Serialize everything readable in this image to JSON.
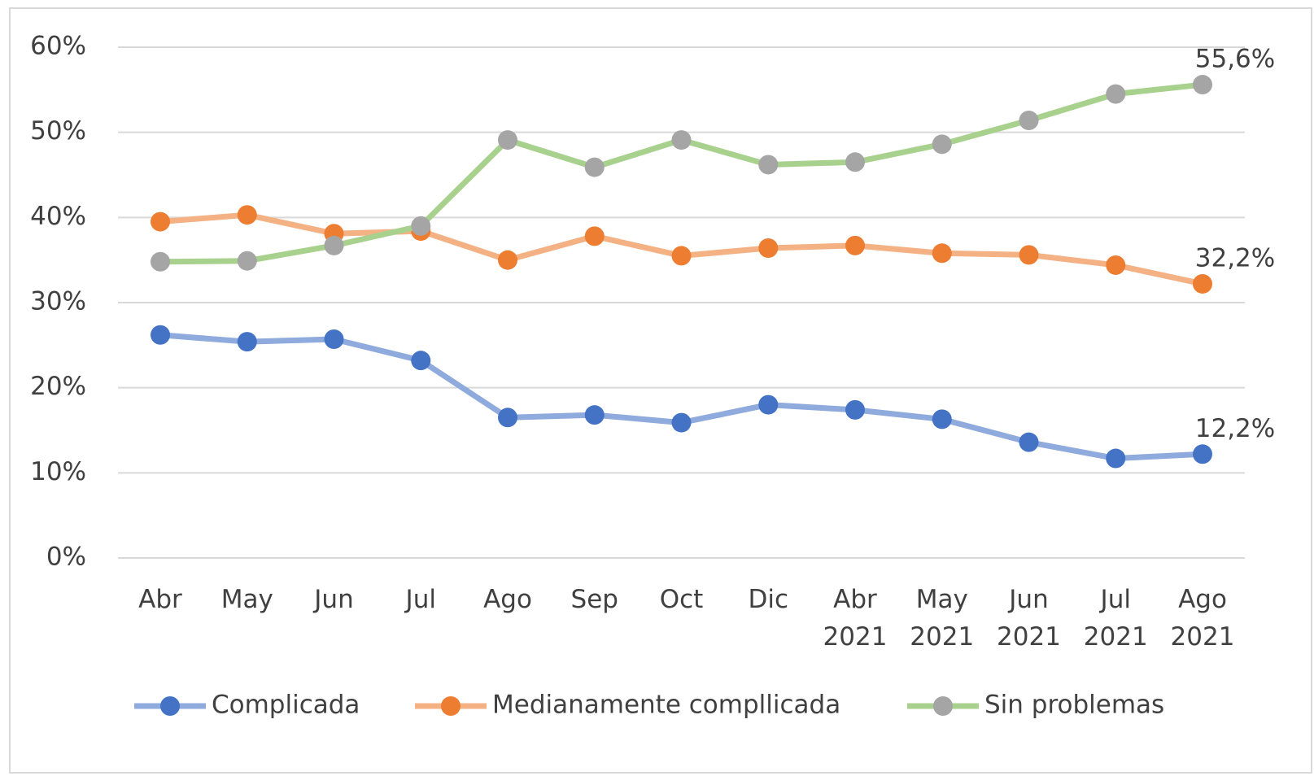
{
  "chart_data": {
    "type": "line",
    "categories": [
      "Abr",
      "May",
      "Jun",
      "Jul",
      "Ago",
      "Sep",
      "Oct",
      "Dic",
      "Abr\n2021",
      "May\n2021",
      "Jun\n2021",
      "Jul\n2021",
      "Ago\n2021"
    ],
    "series": [
      {
        "name": "Complicada",
        "color": "#8faadc",
        "marker_color": "#4472c4",
        "values": [
          26.2,
          25.4,
          25.7,
          23.2,
          16.5,
          16.8,
          15.9,
          18.0,
          17.4,
          16.3,
          13.6,
          11.7,
          12.2
        ],
        "value_labels": [
          null,
          null,
          null,
          null,
          null,
          null,
          null,
          null,
          null,
          null,
          null,
          null,
          "12,2%"
        ]
      },
      {
        "name": "Medianamente compllicada",
        "color": "#f4b183",
        "marker_color": "#ed7d31",
        "values": [
          39.5,
          40.3,
          38.1,
          38.4,
          35.0,
          37.8,
          35.5,
          36.4,
          36.7,
          35.8,
          35.6,
          34.4,
          32.2
        ],
        "value_labels": [
          null,
          null,
          null,
          null,
          null,
          null,
          null,
          null,
          null,
          null,
          null,
          null,
          "32,2%"
        ]
      },
      {
        "name": "Sin problemas",
        "color": "#a9d18e",
        "marker_color": "#a5a5a5",
        "values": [
          34.8,
          34.9,
          36.7,
          39.0,
          49.1,
          45.9,
          49.1,
          46.2,
          46.5,
          48.6,
          51.4,
          54.5,
          55.6
        ],
        "value_labels": [
          null,
          null,
          null,
          null,
          null,
          null,
          null,
          null,
          null,
          null,
          null,
          null,
          "55,6%"
        ]
      }
    ],
    "ylim": [
      0,
      60
    ],
    "yticks": [
      {
        "value": 0,
        "label": "0%"
      },
      {
        "value": 10,
        "label": "10%"
      },
      {
        "value": 20,
        "label": "20%"
      },
      {
        "value": 30,
        "label": "30%"
      },
      {
        "value": 40,
        "label": "40%"
      },
      {
        "value": 50,
        "label": "50%"
      },
      {
        "value": 60,
        "label": "60%"
      }
    ],
    "grid": true,
    "legend": "bottom"
  }
}
